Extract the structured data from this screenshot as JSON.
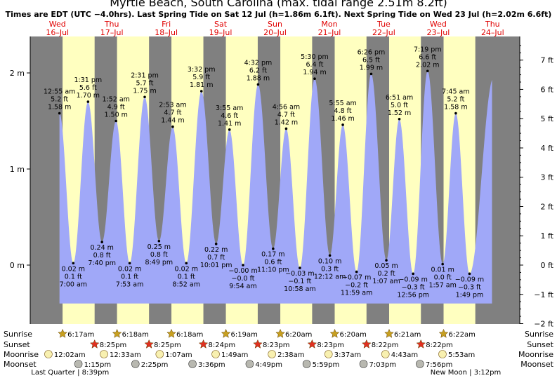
{
  "chart_data": {
    "type": "area",
    "title": "Myrtle Beach, South Carolina (max. tidal range 2.51m 8.2ft)",
    "subtitle": "Times are EDT (UTC −4.0hrs). Last Spring Tide on Sat 12 Jul (h=1.86m 6.1ft). Next Spring Tide on Wed 23 Jul (h=2.02m 6.6ft)",
    "days": [
      {
        "dow": "Wed",
        "date": "16–Jul"
      },
      {
        "dow": "Thu",
        "date": "17–Jul"
      },
      {
        "dow": "Fri",
        "date": "18–Jul"
      },
      {
        "dow": "Sat",
        "date": "19–Jul"
      },
      {
        "dow": "Sun",
        "date": "20–Jul"
      },
      {
        "dow": "Mon",
        "date": "21–Jul"
      },
      {
        "dow": "Tue",
        "date": "22–Jul"
      },
      {
        "dow": "Wed",
        "date": "23–Jul"
      },
      {
        "dow": "Thu",
        "date": "24–Jul"
      }
    ],
    "x_start": "2025-07-16 00:00",
    "x_end": "2025-07-24 23:59",
    "left_axis": {
      "unit": "m",
      "ticks": [
        "2 m",
        "1 m",
        "0 m"
      ],
      "values": [
        2,
        1,
        0
      ],
      "ylim": [
        -0.65,
        2.4
      ]
    },
    "right_axis": {
      "unit": "ft",
      "ticks": [
        "7 ft",
        "6 ft",
        "5 ft",
        "4 ft",
        "3 ft",
        "2 ft",
        "1 ft",
        "0 ft",
        "−1 ft",
        "−2 ft"
      ],
      "values": [
        7,
        6,
        5,
        4,
        3,
        2,
        1,
        0,
        -1,
        -2
      ]
    },
    "tides": [
      {
        "time": "2025-07-16 12:55",
        "kind": "high",
        "label_time": "12:55 am",
        "label_ft": "5.2 ft",
        "label_m": "1.58 m",
        "m": 1.58
      },
      {
        "time": "2025-07-16 19:00",
        "kind": "low",
        "label_time": "7:00 am",
        "label_ft": "0.1 ft",
        "label_m": "0.02 m",
        "m": 0.02
      },
      {
        "time": "2025-07-17 01:31",
        "kind": "high",
        "label_time": "1:31 pm",
        "label_ft": "5.6 ft",
        "label_m": "1.70 m",
        "m": 1.7
      },
      {
        "time": "2025-07-17 07:40",
        "kind": "low",
        "label_time": "7:40 pm",
        "label_ft": "0.8 ft",
        "label_m": "0.24 m",
        "m": 0.24
      },
      {
        "time": "2025-07-17 13:52",
        "kind": "high",
        "label_time": "1:52 am",
        "label_ft": "4.9 ft",
        "label_m": "1.50 m",
        "m": 1.5
      },
      {
        "time": "2025-07-17 19:53",
        "kind": "low",
        "label_time": "7:53 am",
        "label_ft": "0.1 ft",
        "label_m": "0.02 m",
        "m": 0.02
      },
      {
        "time": "2025-07-18 02:31",
        "kind": "high",
        "label_time": "2:31 pm",
        "label_ft": "5.7 ft",
        "label_m": "1.75 m",
        "m": 1.75
      },
      {
        "time": "2025-07-18 08:49",
        "kind": "low",
        "label_time": "8:49 pm",
        "label_ft": "0.8 ft",
        "label_m": "0.25 m",
        "m": 0.25
      },
      {
        "time": "2025-07-18 14:53",
        "kind": "high",
        "label_time": "2:53 am",
        "label_ft": "4.7 ft",
        "label_m": "1.44 m",
        "m": 1.44
      },
      {
        "time": "2025-07-18 20:52",
        "kind": "low",
        "label_time": "8:52 am",
        "label_ft": "0.1 ft",
        "label_m": "0.02 m",
        "m": 0.02
      },
      {
        "time": "2025-07-19 03:32",
        "kind": "high",
        "label_time": "3:32 pm",
        "label_ft": "5.9 ft",
        "label_m": "1.81 m",
        "m": 1.81
      },
      {
        "time": "2025-07-19 10:01",
        "kind": "low",
        "label_time": "10:01 pm",
        "label_ft": "0.7 ft",
        "label_m": "0.22 m",
        "m": 0.22
      },
      {
        "time": "2025-07-19 15:55",
        "kind": "high",
        "label_time": "3:55 am",
        "label_ft": "4.6 ft",
        "label_m": "1.41 m",
        "m": 1.41
      },
      {
        "time": "2025-07-19 21:54",
        "kind": "low",
        "label_time": "9:54 am",
        "label_ft": "−0.0 ft",
        "label_m": "−0.00 m",
        "m": 0.0
      },
      {
        "time": "2025-07-20 04:32",
        "kind": "high",
        "label_time": "4:32 pm",
        "label_ft": "6.2 ft",
        "label_m": "1.88 m",
        "m": 1.88
      },
      {
        "time": "2025-07-20 11:10",
        "kind": "low",
        "label_time": "11:10 pm",
        "label_ft": "0.6 ft",
        "label_m": "0.17 m",
        "m": 0.17
      },
      {
        "time": "2025-07-20 16:56",
        "kind": "high",
        "label_time": "4:56 am",
        "label_ft": "4.7 ft",
        "label_m": "1.42 m",
        "m": 1.42
      },
      {
        "time": "2025-07-20 22:58",
        "kind": "low",
        "label_time": "10:58 am",
        "label_ft": "−0.1 ft",
        "label_m": "−0.03 m",
        "m": -0.03
      },
      {
        "time": "2025-07-21 05:30",
        "kind": "high",
        "label_time": "5:30 pm",
        "label_ft": "6.4 ft",
        "label_m": "1.94 m",
        "m": 1.94
      },
      {
        "time": "2025-07-21 12:12",
        "kind": "low",
        "label_time": "12:12 am",
        "label_ft": "0.3 ft",
        "label_m": "0.10 m",
        "m": 0.1
      },
      {
        "time": "2025-07-21 17:55",
        "kind": "high",
        "label_time": "5:55 am",
        "label_ft": "4.8 ft",
        "label_m": "1.46 m",
        "m": 1.46
      },
      {
        "time": "2025-07-21 23:59",
        "kind": "low",
        "label_time": "11:59 am",
        "label_ft": "−0.2 ft",
        "label_m": "−0.07 m",
        "m": -0.07
      },
      {
        "time": "2025-07-22 06:26",
        "kind": "high",
        "label_time": "6:26 pm",
        "label_ft": "6.5 ft",
        "label_m": "1.99 m",
        "m": 1.99
      },
      {
        "time": "2025-07-22 13:07",
        "kind": "low",
        "label_time": "1:07 am",
        "label_ft": "0.2 ft",
        "label_m": "0.05 m",
        "m": 0.05
      },
      {
        "time": "2025-07-22 18:51",
        "kind": "high",
        "label_time": "6:51 am",
        "label_ft": "5.0 ft",
        "label_m": "1.52 m",
        "m": 1.52
      },
      {
        "time": "2025-07-23 00:56",
        "kind": "low",
        "label_time": "12:56 pm",
        "label_ft": "−0.3 ft",
        "label_m": "−0.09 m",
        "m": -0.09
      },
      {
        "time": "2025-07-23 07:19",
        "kind": "high",
        "label_time": "7:19 pm",
        "label_ft": "6.6 ft",
        "label_m": "2.02 m",
        "m": 2.02
      },
      {
        "time": "2025-07-23 13:57",
        "kind": "low",
        "label_time": "1:57 am",
        "label_ft": "0.0 ft",
        "label_m": "0.01 m",
        "m": 0.01
      },
      {
        "time": "2025-07-23 19:45",
        "kind": "high",
        "label_time": "7:45 am",
        "label_ft": "5.2 ft",
        "label_m": "1.58 m",
        "m": 1.58
      },
      {
        "time": "2025-07-24 01:49",
        "kind": "low",
        "label_time": "1:49 pm",
        "label_ft": "−0.3 ft",
        "label_m": "−0.09 m",
        "m": -0.09
      }
    ],
    "end_level_m": 1.95,
    "daylight": [
      {
        "rise": "2025-07-16 14:17",
        "set": "2025-07-17 04:25"
      },
      {
        "rise": "2025-07-17 14:18",
        "set": "2025-07-18 04:25"
      },
      {
        "rise": "2025-07-18 14:18",
        "set": "2025-07-19 04:24"
      },
      {
        "rise": "2025-07-19 14:19",
        "set": "2025-07-20 04:23"
      },
      {
        "rise": "2025-07-20 14:20",
        "set": "2025-07-21 04:23"
      },
      {
        "rise": "2025-07-21 14:20",
        "set": "2025-07-22 04:22"
      },
      {
        "rise": "2025-07-22 14:21",
        "set": "2025-07-23 04:22"
      },
      {
        "rise": "2025-07-23 14:22",
        "set": "2025-07-24 04:22"
      }
    ],
    "colors": {
      "night": "#808080",
      "day": "#ffffc0",
      "water": "#a0a8f8",
      "grid": "#000000",
      "day_label": "#e00000",
      "sun": "#c8a020",
      "sunset": "#e03020",
      "moon": "#f8f0b0",
      "moonset": "#b8b8b0"
    }
  },
  "almanac": {
    "row_labels": [
      "Sunrise",
      "Sunset",
      "Moonrise",
      "Moonset"
    ],
    "sunrise": [
      {
        "t": "2025-07-16 14:17",
        "text": "6:17am"
      },
      {
        "t": "2025-07-17 14:18",
        "text": "6:18am"
      },
      {
        "t": "2025-07-18 14:18",
        "text": "6:18am"
      },
      {
        "t": "2025-07-19 14:19",
        "text": "6:19am"
      },
      {
        "t": "2025-07-20 14:20",
        "text": "6:20am"
      },
      {
        "t": "2025-07-21 14:20",
        "text": "6:20am"
      },
      {
        "t": "2025-07-22 14:21",
        "text": "6:21am"
      },
      {
        "t": "2025-07-23 14:22",
        "text": "6:22am"
      }
    ],
    "sunset": [
      {
        "t": "2025-07-17 04:25",
        "text": "8:25pm"
      },
      {
        "t": "2025-07-18 04:25",
        "text": "8:25pm"
      },
      {
        "t": "2025-07-19 04:24",
        "text": "8:24pm"
      },
      {
        "t": "2025-07-20 04:23",
        "text": "8:23pm"
      },
      {
        "t": "2025-07-21 04:23",
        "text": "8:23pm"
      },
      {
        "t": "2025-07-22 04:22",
        "text": "8:22pm"
      },
      {
        "t": "2025-07-23 04:22",
        "text": "8:22pm"
      }
    ],
    "moonrise": [
      {
        "t": "2025-07-16 08:02",
        "text": "12:02am"
      },
      {
        "t": "2025-07-17 08:33",
        "text": "12:33am"
      },
      {
        "t": "2025-07-18 09:07",
        "text": "1:07am"
      },
      {
        "t": "2025-07-19 09:49",
        "text": "1:49am"
      },
      {
        "t": "2025-07-20 10:38",
        "text": "2:38am"
      },
      {
        "t": "2025-07-21 11:37",
        "text": "3:37am"
      },
      {
        "t": "2025-07-22 12:43",
        "text": "4:43am"
      },
      {
        "t": "2025-07-23 13:53",
        "text": "5:53am"
      }
    ],
    "moonset": [
      {
        "t": "2025-07-16 21:15",
        "text": "1:15pm"
      },
      {
        "t": "2025-07-17 22:25",
        "text": "2:25pm"
      },
      {
        "t": "2025-07-18 23:36",
        "text": "3:36pm"
      },
      {
        "t": "2025-07-20 00:49",
        "text": "4:49pm"
      },
      {
        "t": "2025-07-21 01:59",
        "text": "5:59pm"
      },
      {
        "t": "2025-07-22 03:03",
        "text": "7:03pm"
      },
      {
        "t": "2025-07-23 03:56",
        "text": "7:56pm"
      }
    ],
    "phases": [
      {
        "t": "2025-07-16 16:39",
        "text": "Last Quarter | 8:39pm"
      },
      {
        "t": "2025-07-23 23:12",
        "text": "New Moon | 3:12pm"
      }
    ]
  }
}
